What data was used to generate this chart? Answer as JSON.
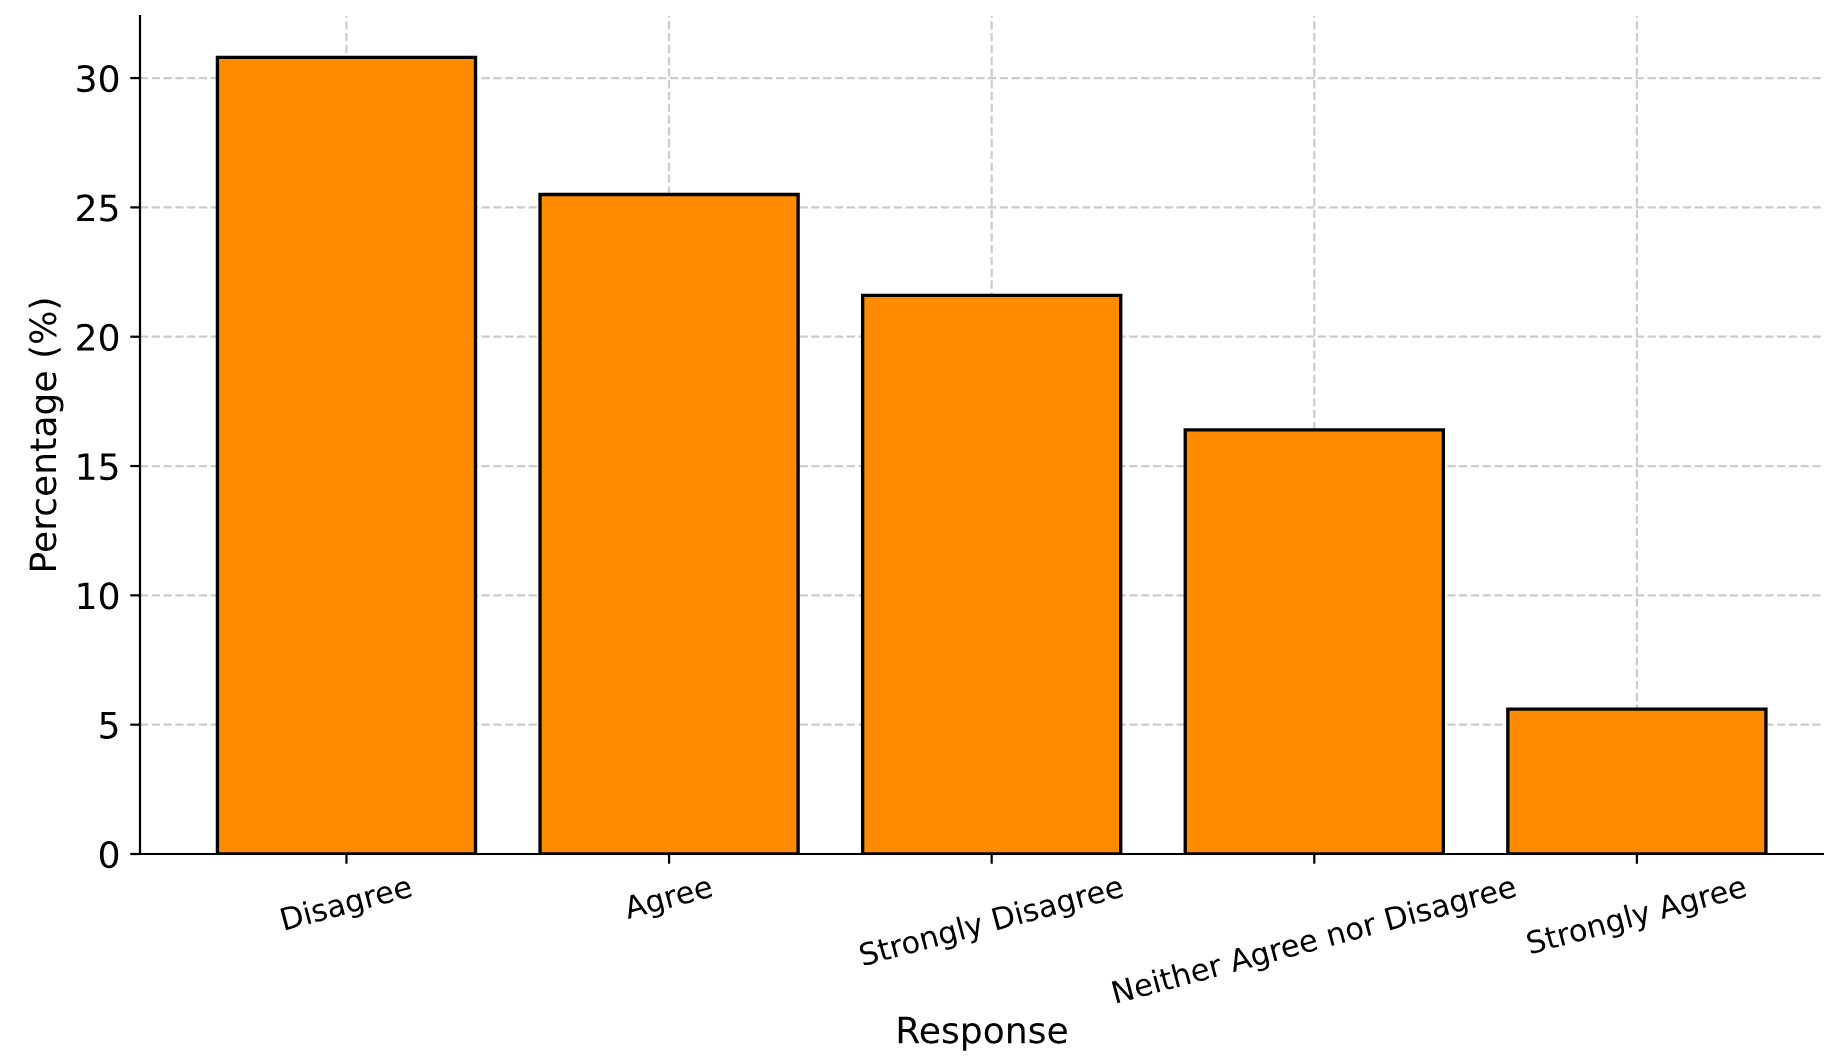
{
  "chart_data": {
    "type": "bar",
    "xlabel": "Response",
    "ylabel": "Percentage (%)",
    "categories": [
      "Disagree",
      "Agree",
      "Strongly Disagree",
      "Neither Agree nor Disagree",
      "Strongly Agree"
    ],
    "values": [
      30.8,
      25.5,
      21.6,
      16.4,
      5.6
    ],
    "color": "#ff8c00",
    "ylim": [
      0,
      32.4
    ],
    "yticks": [
      0,
      5,
      10,
      15,
      20,
      25,
      30
    ],
    "grid": true
  }
}
